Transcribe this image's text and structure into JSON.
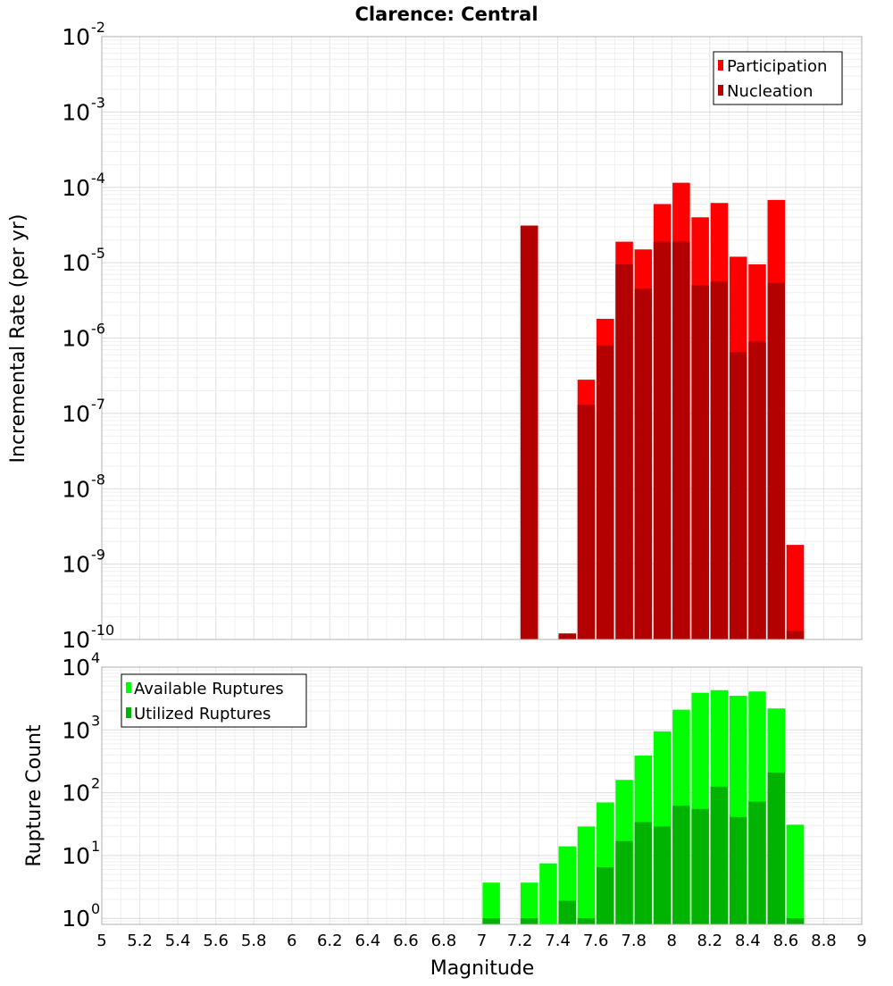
{
  "chart_data": [
    {
      "type": "bar",
      "title": "Clarence: Central",
      "ylabel": "Incremental Rate (per yr)",
      "xlabel": "",
      "yscale": "log",
      "ylim": [
        1e-10,
        0.01
      ],
      "xlim": [
        5,
        9
      ],
      "y_ticks": [
        {
          "base": "10",
          "exp": "-10",
          "value": 1e-10
        },
        {
          "base": "10",
          "exp": "-9",
          "value": 1e-09
        },
        {
          "base": "10",
          "exp": "-8",
          "value": 1e-08
        },
        {
          "base": "10",
          "exp": "-7",
          "value": 1e-07
        },
        {
          "base": "10",
          "exp": "-6",
          "value": 1e-06
        },
        {
          "base": "10",
          "exp": "-5",
          "value": 1e-05
        },
        {
          "base": "10",
          "exp": "-4",
          "value": 0.0001
        },
        {
          "base": "10",
          "exp": "-3",
          "value": 0.001
        },
        {
          "base": "10",
          "exp": "-2",
          "value": 0.01
        }
      ],
      "grid": true,
      "legend_position": "top-right",
      "x": [
        7.25,
        7.45,
        7.55,
        7.65,
        7.75,
        7.85,
        7.95,
        8.05,
        8.15,
        8.25,
        8.35,
        8.45,
        8.55,
        8.65
      ],
      "series": [
        {
          "name": "Participation",
          "color": "#ff0000",
          "values": [
            3.1e-05,
            1.2e-10,
            2.8e-07,
            1.8e-06,
            1.9e-05,
            1.5e-05,
            6e-05,
            0.000115,
            4e-05,
            6.2e-05,
            1.2e-05,
            9.5e-06,
            6.8e-05,
            1.8e-09
          ]
        },
        {
          "name": "Nucleation",
          "color": "#b30000",
          "values": [
            3.1e-05,
            1.2e-10,
            1.3e-07,
            8e-07,
            9.5e-06,
            4.5e-06,
            1.9e-05,
            1.9e-05,
            5e-06,
            5.6e-06,
            6.5e-07,
            9e-07,
            5.4e-06,
            1.3e-10
          ]
        }
      ]
    },
    {
      "type": "bar",
      "title": "",
      "ylabel": "Rupture Count",
      "xlabel": "Magnitude",
      "yscale": "log",
      "ylim": [
        0.8,
        10000
      ],
      "xlim": [
        5,
        9
      ],
      "x_ticks": [
        "5",
        "5.2",
        "5.4",
        "5.6",
        "5.8",
        "6",
        "6.2",
        "6.4",
        "6.6",
        "6.8",
        "7",
        "7.2",
        "7.4",
        "7.6",
        "7.8",
        "8",
        "8.2",
        "8.4",
        "8.6",
        "8.8",
        "9"
      ],
      "y_ticks": [
        {
          "base": "10",
          "exp": "0",
          "value": 1
        },
        {
          "base": "10",
          "exp": "1",
          "value": 10
        },
        {
          "base": "10",
          "exp": "2",
          "value": 100
        },
        {
          "base": "10",
          "exp": "3",
          "value": 1000
        },
        {
          "base": "10",
          "exp": "4",
          "value": 10000
        }
      ],
      "grid": true,
      "legend_position": "top-left",
      "x": [
        7.05,
        7.25,
        7.35,
        7.45,
        7.55,
        7.65,
        7.75,
        7.85,
        7.95,
        8.05,
        8.15,
        8.25,
        8.35,
        8.45,
        8.55,
        8.65
      ],
      "series": [
        {
          "name": "Available Ruptures",
          "color": "#00ff00",
          "values": [
            3.7,
            3.7,
            7.5,
            14,
            29,
            70,
            160,
            390,
            950,
            2100,
            3900,
            4300,
            3500,
            4100,
            2200,
            31
          ]
        },
        {
          "name": "Utilized Ruptures",
          "color": "#00b300",
          "values": [
            1,
            1,
            0.8,
            1.9,
            1,
            6.5,
            17,
            34,
            29,
            62,
            55,
            125,
            41,
            72,
            210,
            1
          ]
        }
      ]
    }
  ]
}
